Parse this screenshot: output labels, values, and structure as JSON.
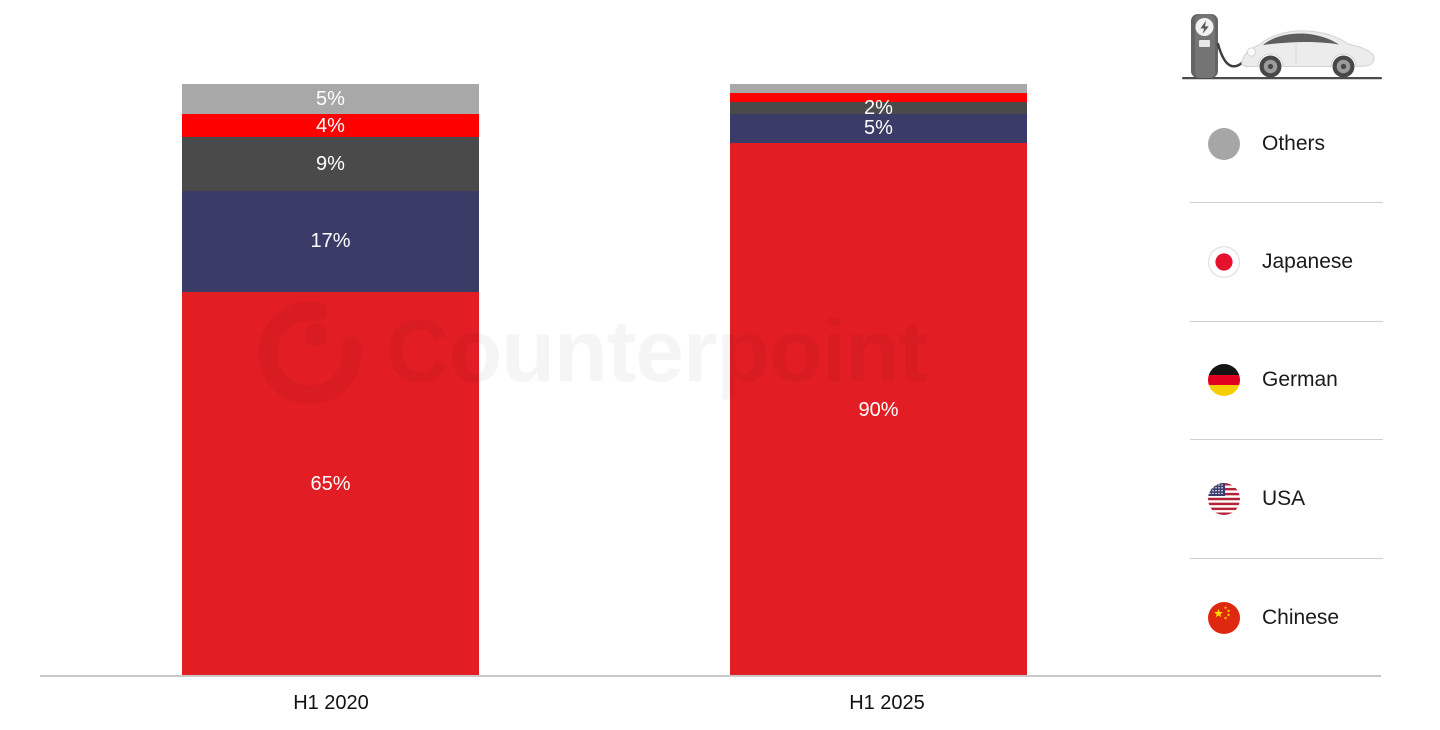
{
  "watermark": {
    "text": "Counterpoint"
  },
  "chart_data": {
    "type": "bar",
    "subtype": "100%-stacked-column",
    "title": "",
    "categories": [
      "H1 2020",
      "H1 2025"
    ],
    "series": [
      {
        "name": "Chinese",
        "color": "#e21d24",
        "values": [
          65,
          90
        ],
        "labels": [
          "65%",
          "90%"
        ]
      },
      {
        "name": "USA",
        "color": "#3b3b67",
        "values": [
          17,
          5
        ],
        "labels": [
          "17%",
          "5%"
        ]
      },
      {
        "name": "German",
        "color": "#4a4a4a",
        "values": [
          9,
          2
        ],
        "labels": [
          "9%",
          "2%"
        ]
      },
      {
        "name": "Japanese",
        "color": "#fe0000",
        "values": [
          4,
          1.5
        ],
        "labels": [
          "4%",
          ""
        ]
      },
      {
        "name": "Others",
        "color": "#a8a8a8",
        "values": [
          5,
          1.5
        ],
        "labels": [
          "5%",
          ""
        ]
      }
    ],
    "stack_order_top_to_bottom": [
      "Others",
      "Japanese",
      "German",
      "USA",
      "Chinese"
    ],
    "xlabel": "",
    "ylabel": "",
    "ylim": [
      0,
      100
    ],
    "grid": false,
    "bar_label_color": "#ffffff",
    "axis_line_color": "#c9c9c9",
    "legend_position": "right"
  },
  "legend": {
    "items": [
      {
        "label": "Others",
        "icon": "gray-circle-icon"
      },
      {
        "label": "Japanese",
        "icon": "japan-flag-icon"
      },
      {
        "label": "German",
        "icon": "germany-flag-icon"
      },
      {
        "label": "USA",
        "icon": "usa-flag-icon"
      },
      {
        "label": "Chinese",
        "icon": "china-flag-icon"
      }
    ]
  }
}
